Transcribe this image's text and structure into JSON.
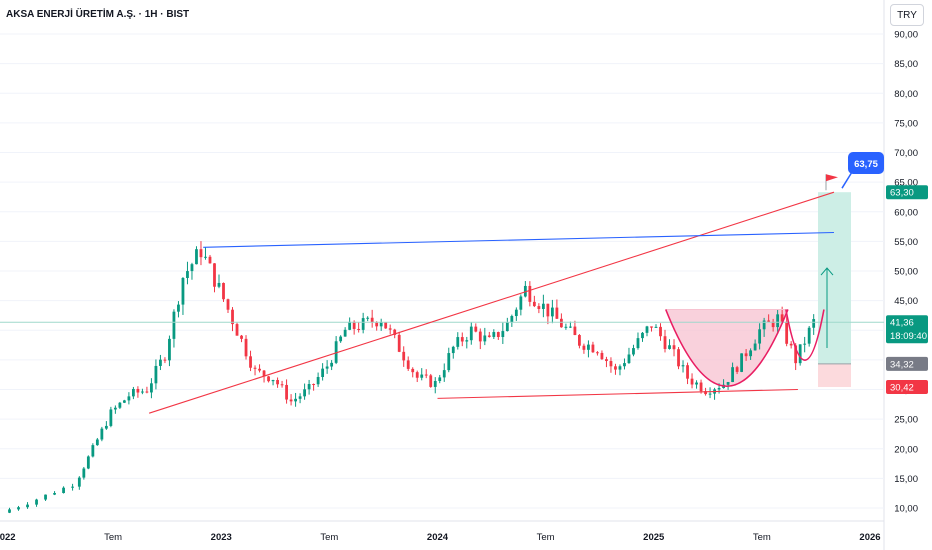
{
  "header": {
    "title": "AKSA ENERJİ ÜRETİM A.Ş. · 1H · BIST",
    "currency_button": "TRY"
  },
  "colors": {
    "up": "#089981",
    "down": "#f23645",
    "trend_red": "#f23645",
    "trend_blue": "#2962ff",
    "target_zone": "#cdeee6",
    "stop_zone": "#fcdadd",
    "cup_fill": "#f7c2d0",
    "cup_line": "#e91e63",
    "target_bubble": "#2962ff",
    "current_price": "#089981",
    "grey_tag": "#787b86"
  },
  "chart_data": {
    "type": "candlestick",
    "symbol": "AKSA ENERJİ ÜRETİM A.Ş.",
    "interval": "1H",
    "exchange": "BIST",
    "currency": "TRY",
    "y_axis": {
      "ticks": [
        "90,00",
        "85,00",
        "80,00",
        "75,00",
        "70,00",
        "65,00",
        "60,00",
        "55,00",
        "50,00",
        "45,00",
        "40,00",
        "35,00",
        "30,00",
        "25,00",
        "20,00",
        "15,00",
        "10,00"
      ],
      "range": [
        8,
        92
      ]
    },
    "x_axis": {
      "ticks": [
        "2022",
        "Tem",
        "2023",
        "Tem",
        "2024",
        "Tem",
        "2025",
        "Tem",
        "2026"
      ],
      "range": [
        "2022-01",
        "2026-02"
      ]
    },
    "price_anchors": [
      {
        "t": "2022-01",
        "v": 9.2
      },
      {
        "t": "2022-03",
        "v": 11.5
      },
      {
        "t": "2022-05",
        "v": 14
      },
      {
        "t": "2022-06",
        "v": 20
      },
      {
        "t": "2022-07",
        "v": 26
      },
      {
        "t": "2022-08",
        "v": 29
      },
      {
        "t": "2022-09",
        "v": 30
      },
      {
        "t": "2022-10",
        "v": 36
      },
      {
        "t": "2022-11",
        "v": 49
      },
      {
        "t": "2022-12",
        "v": 53.5
      },
      {
        "t": "2023-01",
        "v": 47
      },
      {
        "t": "2023-02",
        "v": 40
      },
      {
        "t": "2023-03",
        "v": 33
      },
      {
        "t": "2023-04",
        "v": 32
      },
      {
        "t": "2023-05",
        "v": 28
      },
      {
        "t": "2023-06",
        "v": 30
      },
      {
        "t": "2023-07",
        "v": 34
      },
      {
        "t": "2023-08",
        "v": 40
      },
      {
        "t": "2023-09",
        "v": 41
      },
      {
        "t": "2023-10",
        "v": 42
      },
      {
        "t": "2023-11",
        "v": 37
      },
      {
        "t": "2023-12",
        "v": 32
      },
      {
        "t": "2024-01",
        "v": 31
      },
      {
        "t": "2024-02",
        "v": 37
      },
      {
        "t": "2024-03",
        "v": 40
      },
      {
        "t": "2024-04",
        "v": 38
      },
      {
        "t": "2024-05",
        "v": 41
      },
      {
        "t": "2024-06",
        "v": 47
      },
      {
        "t": "2024-07",
        "v": 44
      },
      {
        "t": "2024-08",
        "v": 41
      },
      {
        "t": "2024-09",
        "v": 38
      },
      {
        "t": "2024-10",
        "v": 37
      },
      {
        "t": "2024-11",
        "v": 33
      },
      {
        "t": "2024-12",
        "v": 37
      },
      {
        "t": "2025-01",
        "v": 41
      },
      {
        "t": "2025-02",
        "v": 37
      },
      {
        "t": "2025-03",
        "v": 32
      },
      {
        "t": "2025-04",
        "v": 30
      },
      {
        "t": "2025-05",
        "v": 31
      },
      {
        "t": "2025-06",
        "v": 35
      },
      {
        "t": "2025-07",
        "v": 40
      },
      {
        "t": "2025-08",
        "v": 42
      },
      {
        "t": "2025-09",
        "v": 35
      },
      {
        "t": "2025-10",
        "v": 41.36
      }
    ],
    "annotations": {
      "rising_trendline": {
        "from": {
          "t": "2022-09",
          "v": 26
        },
        "to": {
          "t": "2025-11",
          "v": 63.3
        }
      },
      "upper_line": {
        "from": {
          "t": "2022-12",
          "v": 54
        },
        "to": {
          "t": "2025-11",
          "v": 56.5
        }
      },
      "support_line": {
        "from": {
          "t": "2024-01",
          "v": 28.5
        },
        "to": {
          "t": "2025-09",
          "v": 30
        }
      },
      "horizontal_level": 41.36,
      "cup_top": 43.5,
      "cup_bottom": 29.5,
      "handle_bottom": 34.5,
      "target_zone": [
        34.32,
        63.3
      ],
      "stop_zone": [
        30.42,
        34.32
      ],
      "target_bubble": "63,75"
    },
    "price_labels": [
      {
        "label": "63,30",
        "value": 63.3,
        "kind": "target"
      },
      {
        "label": "41,36",
        "value": 41.36,
        "kind": "current",
        "sub": "18:09:40"
      },
      {
        "label": "34,32",
        "value": 34.32,
        "kind": "entry"
      },
      {
        "label": "30,42",
        "value": 30.42,
        "kind": "stop"
      }
    ]
  }
}
